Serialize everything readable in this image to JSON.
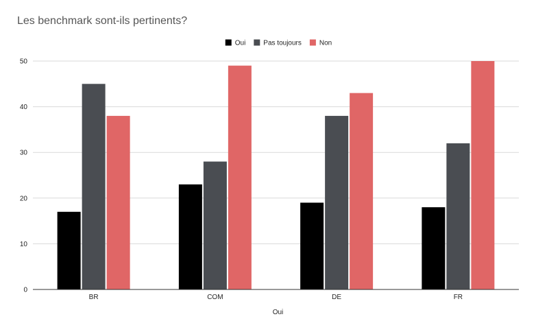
{
  "chart_data": {
    "type": "bar",
    "title": "Les benchmark sont-ils pertinents?",
    "xlabel": "Oui",
    "ylabel": "",
    "categories": [
      "BR",
      "COM",
      "DE",
      "FR"
    ],
    "series": [
      {
        "name": "Oui",
        "values": [
          17,
          23,
          19,
          18
        ],
        "color": "#000000"
      },
      {
        "name": "Pas toujours",
        "values": [
          45,
          28,
          38,
          32
        ],
        "color": "#4a4d52"
      },
      {
        "name": "Non",
        "values": [
          38,
          49,
          43,
          50
        ],
        "color": "#e06666"
      }
    ],
    "ylim": [
      0,
      50
    ],
    "yticks": [
      0,
      10,
      20,
      30,
      40,
      50
    ],
    "grid": true,
    "legend": "top-center"
  }
}
